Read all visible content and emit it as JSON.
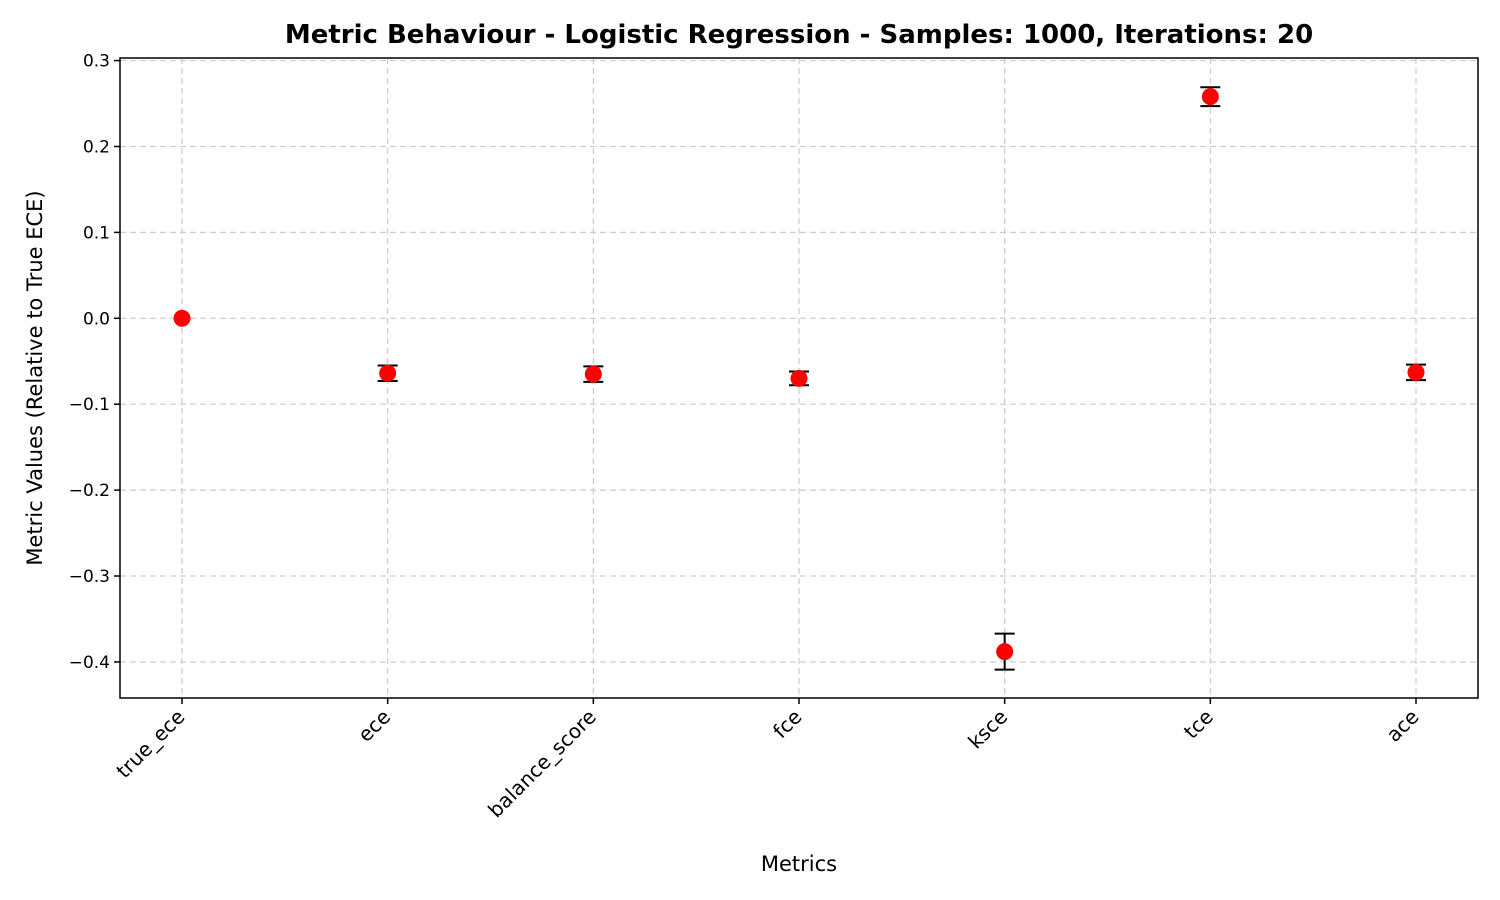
{
  "chart_data": {
    "type": "scatter",
    "title": "Metric Behaviour - Logistic Regression - Samples: 1000, Iterations: 20",
    "xlabel": "Metrics",
    "ylabel": "Metric Values (Relative to True ECE)",
    "categories": [
      "true_ece",
      "ece",
      "balance_score",
      "fce",
      "ksce",
      "tce",
      "ace"
    ],
    "values": [
      0.0,
      -0.064,
      -0.065,
      -0.07,
      -0.388,
      0.258,
      -0.063
    ],
    "errors": [
      0.0,
      0.009,
      0.009,
      0.008,
      0.021,
      0.011,
      0.009
    ],
    "ylim": [
      -0.442,
      0.303
    ],
    "yticks": [
      0.3,
      0.2,
      0.1,
      0.0,
      -0.1,
      -0.2,
      -0.3,
      -0.4
    ],
    "ytick_labels": [
      "0.3",
      "0.2",
      "0.1",
      "0.0",
      "−0.1",
      "−0.2",
      "−0.3",
      "−0.4"
    ],
    "grid": true,
    "marker_color": "#ff0000",
    "errorbar_color": "#000000"
  }
}
